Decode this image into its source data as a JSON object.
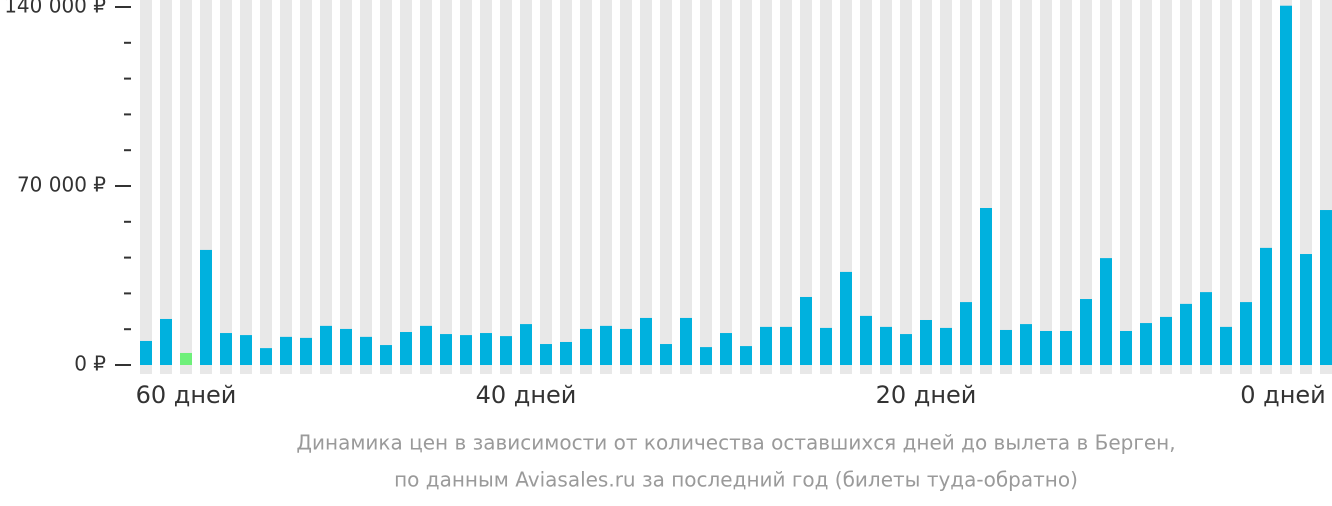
{
  "chart_data": {
    "type": "bar",
    "caption": [
      "Динамика цен в зависимости от количества оставшихся дней до вылета в Берген,",
      "по данным Aviasales.ru за последний год (билеты туда-обратно)"
    ],
    "categories": [
      null,
      null,
      "60 дней",
      null,
      null,
      null,
      null,
      null,
      null,
      null,
      null,
      null,
      null,
      null,
      null,
      null,
      null,
      null,
      null,
      "40 дней",
      null,
      null,
      null,
      null,
      null,
      null,
      null,
      null,
      null,
      null,
      null,
      null,
      null,
      null,
      null,
      null,
      null,
      null,
      null,
      "20 дней",
      null,
      null,
      null,
      null,
      null,
      null,
      null,
      null,
      null,
      null,
      null,
      null,
      null,
      null,
      null,
      null,
      null,
      "0 дней",
      null,
      null
    ],
    "values": [
      9400,
      18000,
      4700,
      45000,
      12500,
      11700,
      6600,
      11000,
      10600,
      15300,
      14100,
      11000,
      7800,
      12900,
      15300,
      12100,
      11700,
      12500,
      11300,
      16000,
      8200,
      9000,
      14100,
      15300,
      14100,
      18400,
      8200,
      18400,
      7000,
      12500,
      7400,
      14900,
      14900,
      26600,
      14500,
      36400,
      19200,
      14900,
      12100,
      17600,
      14500,
      24600,
      61400,
      13700,
      16000,
      13300,
      13300,
      25800,
      41800,
      13300,
      16400,
      18800,
      23900,
      28500,
      14900,
      24600,
      45800,
      140500,
      43400,
      60600
    ],
    "color": "#00b1de",
    "min_color": "#6ef07a",
    "background_color": "#e8e8e8",
    "ylim": [
      0,
      140000
    ],
    "yticks": [
      {
        "value": 0,
        "label": "0 ₽"
      },
      {
        "value": 70000,
        "label": "70 000 ₽"
      },
      {
        "value": 140000,
        "label": "140 000 ₽"
      }
    ],
    "minor_yticks": [
      14000,
      28000,
      42000,
      56000,
      84000,
      98000,
      112000,
      126000
    ]
  }
}
